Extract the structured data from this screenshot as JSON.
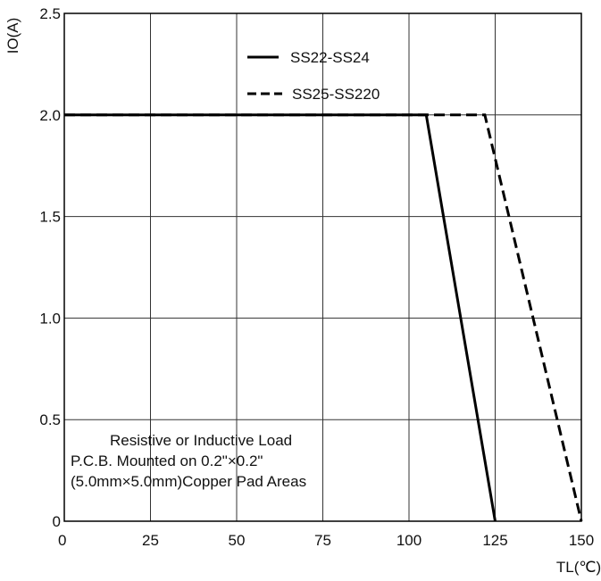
{
  "chart_data": {
    "type": "line",
    "xlabel": "TL(℃)",
    "ylabel": "IO(A)",
    "xlim": [
      0,
      150
    ],
    "ylim": [
      0,
      2.5
    ],
    "x_ticks": [
      0,
      25,
      50,
      75,
      100,
      125,
      150
    ],
    "y_ticks": [
      0,
      0.5,
      1.0,
      1.5,
      2.0,
      2.5
    ],
    "x_tick_labels": [
      "0",
      "25",
      "50",
      "75",
      "100",
      "125",
      "150"
    ],
    "y_tick_labels": [
      "0",
      "0.5",
      "1.0",
      "1.5",
      "2.0",
      "2.5"
    ],
    "grid": true,
    "legend_position": "top-right",
    "series": [
      {
        "name": "SS22-SS24",
        "style": "solid",
        "x": [
          0,
          105,
          125
        ],
        "y": [
          2.0,
          2.0,
          0
        ]
      },
      {
        "name": "SS25-SS220",
        "style": "dashed",
        "x": [
          0,
          122,
          150
        ],
        "y": [
          2.0,
          2.0,
          0
        ]
      }
    ],
    "annotations": [
      "Resistive or Inductive Load",
      "P.C.B. Mounted on 0.2\"×0.2\"",
      "(5.0mm×5.0mm)Copper Pad Areas"
    ]
  }
}
